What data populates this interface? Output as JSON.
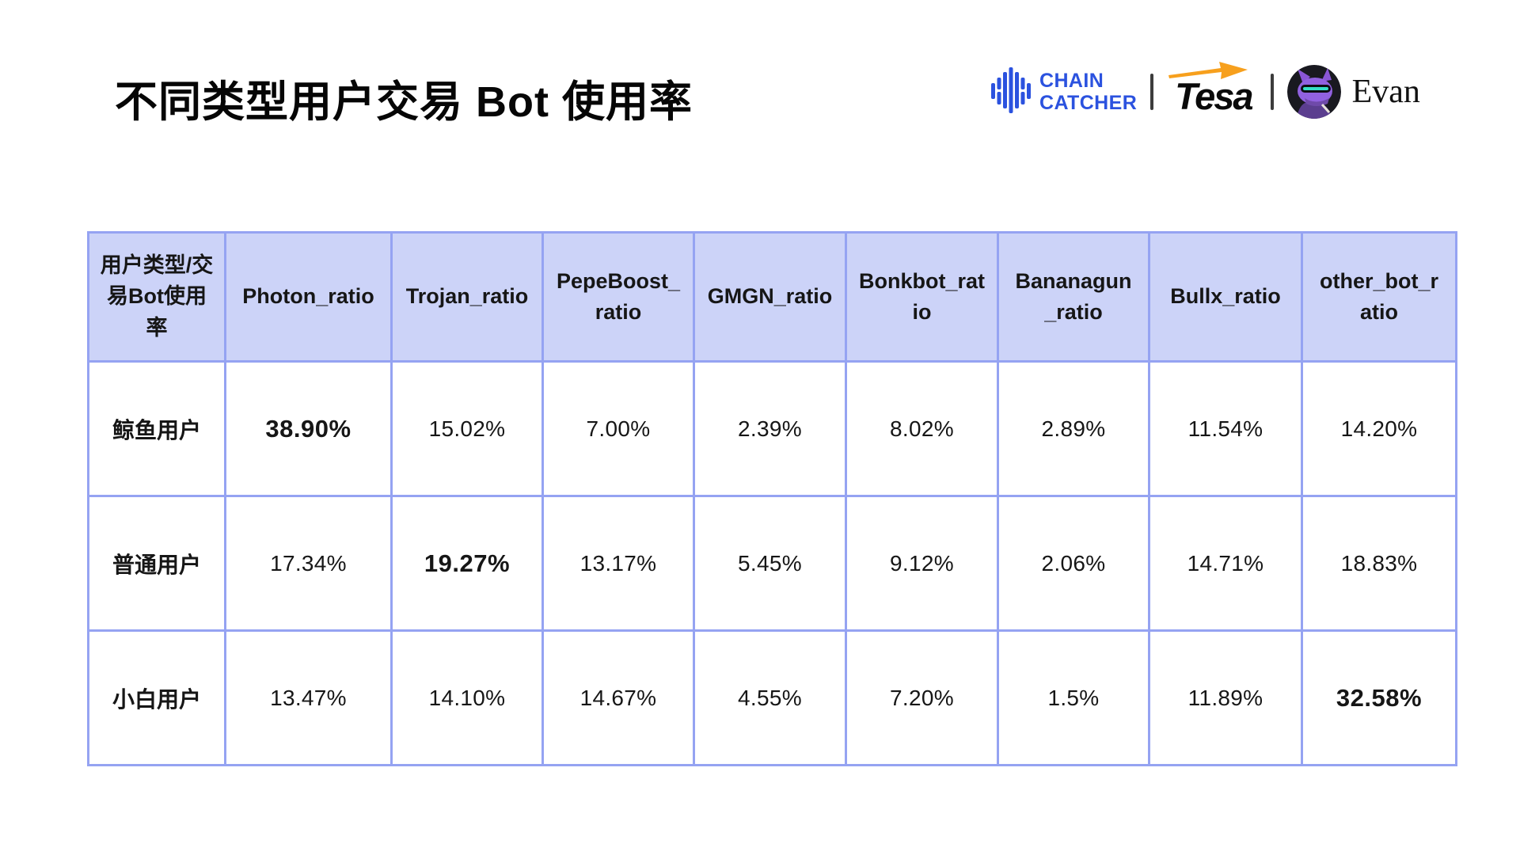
{
  "page": {
    "title": "不同类型用户交易 Bot 使用率"
  },
  "brand_bar": {
    "chaincatcher": {
      "name": "ChainCatcher",
      "line1": "CHAIN",
      "line2": "CATCHER",
      "color": "#2b52df"
    },
    "divider_glyph": "|",
    "tesa": {
      "name": "Tesa",
      "arrow_color": "#f7a01d"
    },
    "author": {
      "name": "Evan"
    }
  },
  "table": {
    "corner_header": "用户类型/交易Bot使用率",
    "bot_columns": [
      "Photon_ratio",
      "Trojan_ratio",
      "PepeBoost_ratio",
      "GMGN_ratio",
      "Bonkbot_ratio",
      "Bananagun_ratio",
      "Bullx_ratio",
      "other_bot_ratio"
    ],
    "rows": [
      {
        "user_type": "鲸鱼用户",
        "values": [
          "38.90%",
          "15.02%",
          "7.00%",
          "2.39%",
          "8.02%",
          "2.89%",
          "11.54%",
          "14.20%"
        ],
        "bold_value_index": 0
      },
      {
        "user_type": "普通用户",
        "values": [
          "17.34%",
          "19.27%",
          "13.17%",
          "5.45%",
          "9.12%",
          "2.06%",
          "14.71%",
          "18.83%"
        ],
        "bold_value_index": 1
      },
      {
        "user_type": "小白用户",
        "values": [
          "13.47%",
          "14.10%",
          "14.67%",
          "4.55%",
          "7.20%",
          "1.5%",
          "11.89%",
          "32.58%"
        ],
        "bold_value_index": 7
      }
    ],
    "style": {
      "header_bg": "#ccd3f8",
      "border_color": "#95a3f2",
      "text_color": "#111111"
    }
  },
  "chart_data": {
    "type": "table",
    "title": "不同类型用户交易 Bot 使用率",
    "units": "percent",
    "columns": [
      "用户类型/交易Bot使用率",
      "Photon_ratio",
      "Trojan_ratio",
      "PepeBoost_ratio",
      "GMGN_ratio",
      "Bonkbot_ratio",
      "Bananagun_ratio",
      "Bullx_ratio",
      "other_bot_ratio"
    ],
    "rows": [
      [
        "鲸鱼用户",
        38.9,
        15.02,
        7.0,
        2.39,
        8.02,
        2.89,
        11.54,
        14.2
      ],
      [
        "普通用户",
        17.34,
        19.27,
        13.17,
        5.45,
        9.12,
        2.06,
        14.71,
        18.83
      ],
      [
        "小白用户",
        13.47,
        14.1,
        14.67,
        4.55,
        7.2,
        1.5,
        11.89,
        32.58
      ]
    ],
    "emphasized_cells": [
      {
        "row": "鲸鱼用户",
        "column": "Photon_ratio",
        "value": 38.9
      },
      {
        "row": "普通用户",
        "column": "Trojan_ratio",
        "value": 19.27
      },
      {
        "row": "小白用户",
        "column": "other_bot_ratio",
        "value": 32.58
      }
    ]
  }
}
